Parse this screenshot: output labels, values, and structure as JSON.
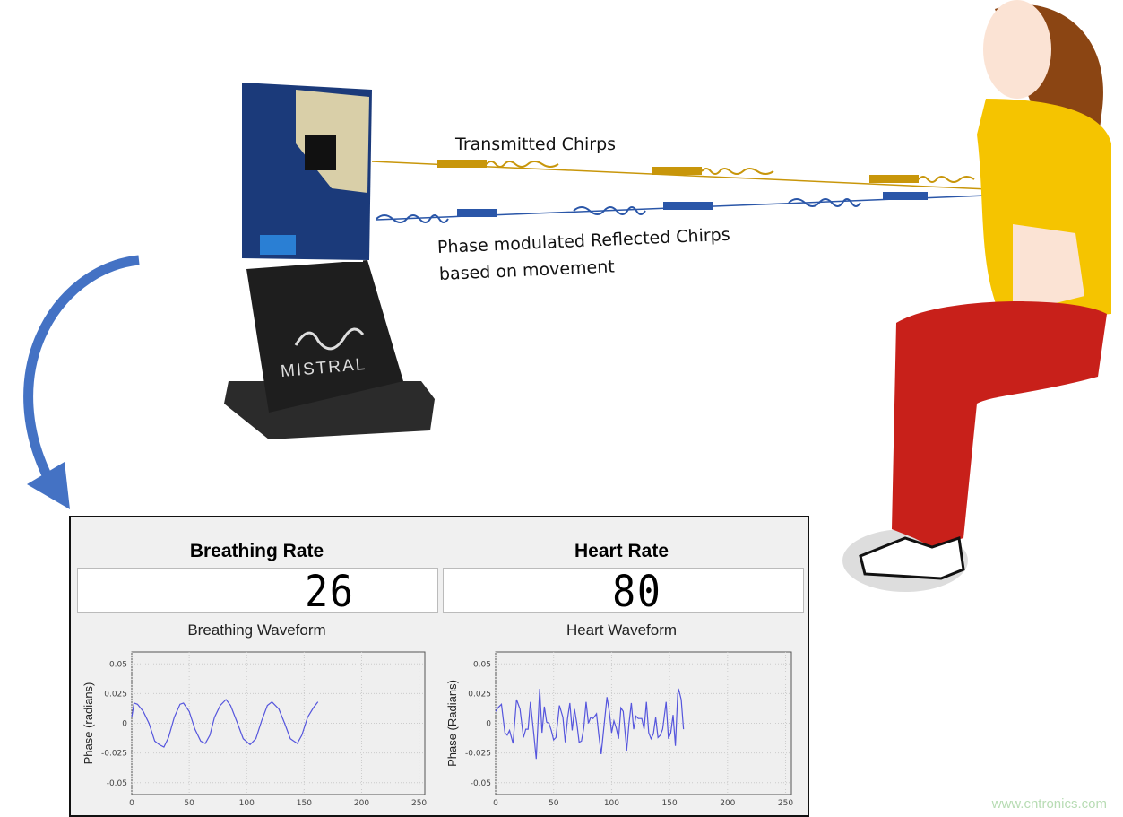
{
  "scene": {
    "transmitted_label": "Transmitted Chirps",
    "reflected_label_line1": "Phase modulated Reflected  Chirps",
    "reflected_label_line2": "based on movement",
    "device_brand": "MISTRAL",
    "colors": {
      "transmitted": "#c8960a",
      "reflected": "#2a56a8",
      "arrow": "#4472c4",
      "shirt": "#f5c400",
      "pants": "#c8201a",
      "hair": "#8b4513"
    }
  },
  "panel": {
    "breathing": {
      "title": "Breathing Rate",
      "value": "26",
      "waveform_title": "Breathing Waveform"
    },
    "heart": {
      "title": "Heart Rate",
      "value": "80",
      "waveform_title": "Heart Waveform"
    }
  },
  "watermark": "www.cntronics.com",
  "chart_data": [
    {
      "type": "line",
      "title": "Breathing Waveform",
      "xlabel": "",
      "ylabel": "Phase (radians)",
      "xlim": [
        0,
        255
      ],
      "ylim": [
        -0.06,
        0.06
      ],
      "xticks": [
        "0",
        "50",
        "100",
        "150",
        "200",
        "250"
      ],
      "yticks": [
        "0.05",
        "0.025",
        "0",
        "-0.025",
        "-0.05"
      ],
      "grid": true,
      "color": "#5555dd",
      "x": [
        0,
        2,
        5,
        10,
        15,
        20,
        24,
        28,
        32,
        37,
        42,
        45,
        50,
        55,
        60,
        64,
        68,
        72,
        77,
        82,
        86,
        92,
        97,
        103,
        108,
        113,
        118,
        122,
        128,
        133,
        138,
        144,
        148,
        153,
        158,
        162
      ],
      "y": [
        0.005,
        0.017,
        0.016,
        0.01,
        0,
        -0.015,
        -0.018,
        -0.02,
        -0.012,
        0.005,
        0.016,
        0.017,
        0.01,
        -0.005,
        -0.015,
        -0.017,
        -0.01,
        0.005,
        0.015,
        0.02,
        0.015,
        0,
        -0.013,
        -0.018,
        -0.013,
        0.002,
        0.015,
        0.018,
        0.012,
        0,
        -0.013,
        -0.017,
        -0.01,
        0.005,
        0.013,
        0.018
      ]
    },
    {
      "type": "line",
      "title": "Heart Waveform",
      "xlabel": "",
      "ylabel": "Phase (Radians)",
      "xlim": [
        0,
        255
      ],
      "ylim": [
        -0.06,
        0.06
      ],
      "xticks": [
        "0",
        "50",
        "100",
        "150",
        "200",
        "250"
      ],
      "yticks": [
        "0.05",
        "0.025",
        "0",
        "-0.025",
        "-0.05"
      ],
      "grid": true,
      "color": "#5555dd",
      "x": [
        0,
        2,
        5,
        8,
        10,
        12,
        15,
        18,
        21,
        24,
        26,
        28,
        30,
        33,
        35,
        38,
        40,
        42,
        44,
        46,
        48,
        50,
        52,
        55,
        58,
        60,
        62,
        64,
        66,
        68,
        70,
        72,
        74,
        76,
        78,
        80,
        82,
        84,
        87,
        89,
        91,
        94,
        96,
        98,
        100,
        102,
        104,
        106,
        108,
        110,
        113,
        115,
        117,
        119,
        121,
        123,
        126,
        128,
        130,
        132,
        134,
        136,
        138,
        140,
        142,
        144,
        147,
        149,
        151,
        153,
        155,
        157,
        158,
        160,
        162
      ],
      "y": [
        0.01,
        0.013,
        0.016,
        -0.008,
        -0.01,
        -0.006,
        -0.017,
        0.02,
        0.012,
        -0.012,
        -0.005,
        -0.005,
        0.018,
        -0.01,
        -0.03,
        0.029,
        -0.008,
        0.014,
        0.001,
        0,
        -0.006,
        -0.014,
        -0.012,
        0.015,
        0.005,
        -0.016,
        0.004,
        0.017,
        -0.006,
        0.012,
        0,
        -0.016,
        -0.015,
        -0.004,
        0.018,
        0,
        0.005,
        0.004,
        0.008,
        -0.01,
        -0.026,
        0.003,
        0.022,
        0.01,
        -0.008,
        0.002,
        -0.004,
        -0.013,
        0.013,
        0.01,
        -0.023,
        0,
        0.017,
        -0.005,
        0.006,
        0.004,
        0.004,
        -0.005,
        0.018,
        -0.008,
        -0.013,
        -0.009,
        0.005,
        -0.012,
        -0.01,
        -0.005,
        0.018,
        -0.013,
        -0.008,
        0.007,
        -0.019,
        0.025,
        0.028,
        0.02,
        -0.005
      ]
    }
  ]
}
